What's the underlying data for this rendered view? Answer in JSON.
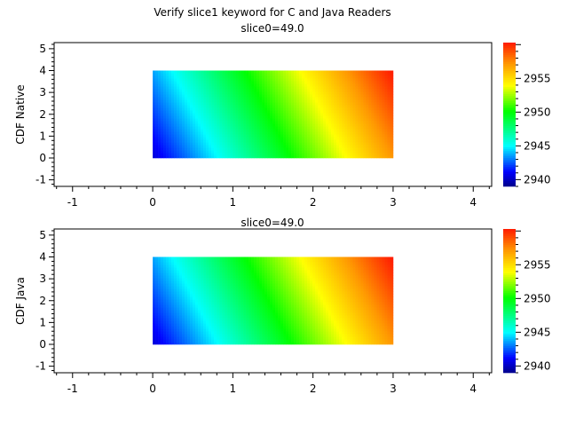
{
  "chart_data": {
    "title": "Verify slice1 keyword for C and Java Readers",
    "panels": [
      {
        "type": "heatmap",
        "subtitle": "slice0=49.0",
        "ylabel": "CDF Native",
        "xlim": [
          -1.23,
          4.23
        ],
        "ylim": [
          -1.3,
          5.28
        ],
        "x_ticks": [
          "-1",
          "0",
          "1",
          "2",
          "3",
          "4"
        ],
        "y_ticks": [
          "-1",
          "0",
          "1",
          "2",
          "3",
          "4",
          "5"
        ],
        "grid": false,
        "x": [
          0,
          1,
          2,
          3
        ],
        "y": [
          0,
          1,
          2,
          3,
          4
        ],
        "z": [
          [
            2940.4,
            2946.0,
            2951.6,
            2957.2
          ],
          [
            2941.2,
            2946.8,
            2952.4,
            2958.0
          ],
          [
            2942.0,
            2947.6,
            2953.2,
            2958.8
          ],
          [
            2942.8,
            2948.4,
            2954.0,
            2959.6
          ],
          [
            2943.6,
            2949.2,
            2954.8,
            2960.4
          ]
        ],
        "colorbar": {
          "range": [
            2939,
            2960.3
          ],
          "ticks": [
            "2940",
            "2945",
            "2950",
            "2955"
          ]
        }
      },
      {
        "type": "heatmap",
        "subtitle": "slice0=49.0",
        "ylabel": "CDF Java",
        "xlim": [
          -1.23,
          4.23
        ],
        "ylim": [
          -1.3,
          5.28
        ],
        "x_ticks": [
          "-1",
          "0",
          "1",
          "2",
          "3",
          "4"
        ],
        "y_ticks": [
          "-1",
          "0",
          "1",
          "2",
          "3",
          "4",
          "5"
        ],
        "grid": false,
        "x": [
          0,
          1,
          2,
          3
        ],
        "y": [
          0,
          1,
          2,
          3,
          4
        ],
        "z": [
          [
            2940.4,
            2946.0,
            2951.6,
            2957.2
          ],
          [
            2941.2,
            2946.8,
            2952.4,
            2958.0
          ],
          [
            2942.0,
            2947.6,
            2953.2,
            2958.8
          ],
          [
            2942.8,
            2948.4,
            2954.0,
            2959.6
          ],
          [
            2943.6,
            2949.2,
            2954.8,
            2960.4
          ]
        ],
        "colorbar": {
          "range": [
            2939,
            2960.3
          ],
          "ticks": [
            "2940",
            "2945",
            "2950",
            "2955"
          ]
        }
      }
    ],
    "colormap": [
      "#00008c",
      "#0000ff",
      "#00ffff",
      "#00ff00",
      "#ffff00",
      "#ff9900",
      "#ff1a00"
    ]
  }
}
